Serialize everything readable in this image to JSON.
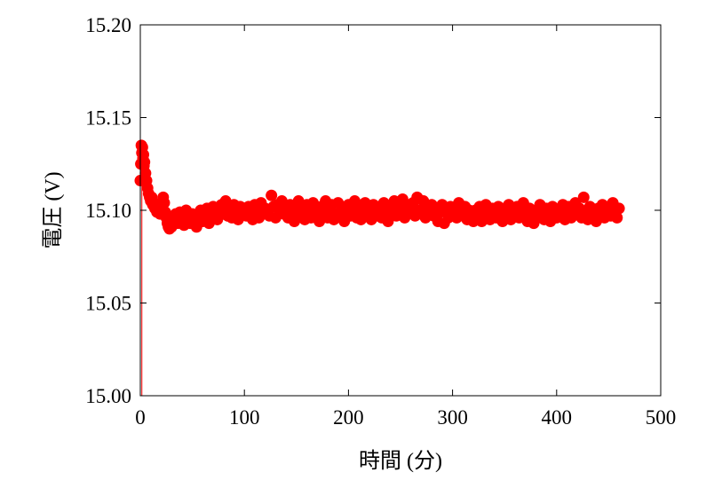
{
  "chart_data": {
    "type": "scatter",
    "title": "",
    "xlabel": "時間 (分)",
    "ylabel": "電圧 (V)",
    "xlim": [
      0,
      500
    ],
    "ylim": [
      15.0,
      15.2
    ],
    "xticks": [
      "0",
      "100",
      "200",
      "300",
      "400",
      "500"
    ],
    "yticks": [
      "15.00",
      "15.05",
      "15.10",
      "15.15",
      "15.20"
    ],
    "grid": false,
    "legend": "none",
    "series_color": "#ff0000",
    "drop_line": {
      "x": [
        1.5,
        1.5
      ],
      "y": [
        15.0,
        15.116
      ]
    },
    "series": [
      {
        "x": [
          0,
          0.5,
          1,
          1.5,
          2,
          2.5,
          3,
          3.5,
          4,
          5,
          6,
          7,
          8,
          9,
          10,
          11,
          12,
          13,
          14,
          15,
          16,
          17,
          18,
          19,
          20,
          21,
          22,
          23,
          24,
          25,
          26,
          27,
          28,
          29,
          30,
          32,
          34,
          36,
          38,
          40,
          42,
          44,
          46,
          48,
          50,
          52,
          54,
          56,
          58,
          60,
          62,
          64,
          66,
          68,
          70,
          72,
          74,
          76,
          78,
          80,
          82,
          84,
          86,
          88,
          90,
          92,
          94,
          96,
          98,
          100,
          102,
          104,
          106,
          108,
          110,
          112,
          114,
          116,
          118,
          120,
          122,
          124,
          126,
          128,
          130,
          132,
          134,
          136,
          138,
          140,
          142,
          144,
          146,
          148,
          150,
          152,
          154,
          156,
          158,
          160,
          162,
          164,
          166,
          168,
          170,
          172,
          174,
          176,
          178,
          180,
          182,
          184,
          186,
          188,
          190,
          192,
          194,
          196,
          198,
          200,
          202,
          204,
          206,
          208,
          210,
          212,
          214,
          216,
          218,
          220,
          222,
          224,
          226,
          228,
          230,
          232,
          234,
          236,
          238,
          240,
          242,
          244,
          246,
          248,
          250,
          252,
          254,
          256,
          258,
          260,
          262,
          264,
          266,
          268,
          270,
          272,
          274,
          276,
          278,
          280,
          282,
          284,
          286,
          288,
          290,
          292,
          294,
          296,
          298,
          300,
          302,
          304,
          306,
          308,
          310,
          312,
          314,
          316,
          318,
          320,
          322,
          324,
          326,
          328,
          330,
          332,
          334,
          336,
          338,
          340,
          342,
          344,
          346,
          348,
          350,
          352,
          354,
          356,
          358,
          360,
          362,
          364,
          366,
          368,
          370,
          372,
          374,
          376,
          378,
          380,
          382,
          384,
          386,
          388,
          390,
          392,
          394,
          396,
          398,
          400,
          402,
          404,
          406,
          408,
          410,
          412,
          414,
          416,
          418,
          420,
          422,
          424,
          426,
          428,
          430,
          432,
          434,
          436,
          438,
          440,
          442,
          444,
          446,
          448,
          450,
          452,
          454,
          456,
          458,
          460
        ],
        "y": [
          15.116,
          15.125,
          15.135,
          15.131,
          15.134,
          15.128,
          15.13,
          15.124,
          15.126,
          15.12,
          15.116,
          15.112,
          15.109,
          15.107,
          15.105,
          15.107,
          15.103,
          15.104,
          15.101,
          15.102,
          15.099,
          15.102,
          15.1,
          15.098,
          15.101,
          15.103,
          15.107,
          15.104,
          15.099,
          15.096,
          15.093,
          15.091,
          15.09,
          15.092,
          15.091,
          15.094,
          15.098,
          15.093,
          15.099,
          15.095,
          15.092,
          15.1,
          15.096,
          15.093,
          15.098,
          15.094,
          15.091,
          15.097,
          15.1,
          15.094,
          15.096,
          15.101,
          15.093,
          15.099,
          15.102,
          15.097,
          15.095,
          15.1,
          15.103,
          15.098,
          15.105,
          15.097,
          15.101,
          15.096,
          15.103,
          15.099,
          15.095,
          15.102,
          15.098,
          15.101,
          15.097,
          15.102,
          15.099,
          15.095,
          15.103,
          15.1,
          15.096,
          15.104,
          15.098,
          15.101,
          15.099,
          15.097,
          15.108,
          15.102,
          15.096,
          15.103,
          15.1,
          15.105,
          15.098,
          15.101,
          15.096,
          15.103,
          15.099,
          15.094,
          15.102,
          15.105,
          15.097,
          15.1,
          15.095,
          15.103,
          15.099,
          15.096,
          15.104,
          15.101,
          15.097,
          15.094,
          15.102,
          15.099,
          15.105,
          15.096,
          15.1,
          15.103,
          15.095,
          15.098,
          15.104,
          15.097,
          15.101,
          15.094,
          15.1,
          15.103,
          15.097,
          15.099,
          15.105,
          15.096,
          15.102,
          15.095,
          15.1,
          15.104,
          15.098,
          15.101,
          15.095,
          15.103,
          15.099,
          15.097,
          15.102,
          15.096,
          15.104,
          15.1,
          15.094,
          15.101,
          15.098,
          15.105,
          15.097,
          15.102,
          15.1,
          15.106,
          15.096,
          15.103,
          15.099,
          15.101,
          15.104,
          15.097,
          15.107,
          15.1,
          15.098,
          15.105,
          15.096,
          15.102,
          15.099,
          15.103,
          15.097,
          15.101,
          15.094,
          15.099,
          15.103,
          15.093,
          15.1,
          15.096,
          15.102,
          15.098,
          15.101,
          15.096,
          15.104,
          15.099,
          15.097,
          15.102,
          15.095,
          15.1,
          15.098,
          15.094,
          15.1,
          15.096,
          15.102,
          15.094,
          15.099,
          15.103,
          15.097,
          15.095,
          15.101,
          15.098,
          15.096,
          15.102,
          15.099,
          15.094,
          15.101,
          15.097,
          15.103,
          15.095,
          15.1,
          15.098,
          15.102,
          15.096,
          15.099,
          15.104,
          15.097,
          15.094,
          15.101,
          15.098,
          15.093,
          15.1,
          15.096,
          15.103,
          15.098,
          15.095,
          15.101,
          15.097,
          15.094,
          15.102,
          15.099,
          15.096,
          15.1,
          15.097,
          15.103,
          15.095,
          15.099,
          15.102,
          15.096,
          15.1,
          15.104,
          15.098,
          15.101,
          15.096,
          15.107,
          15.099,
          15.095,
          15.102,
          15.097,
          15.1,
          15.094,
          15.101,
          15.098,
          15.103,
          15.096,
          15.1,
          15.102,
          15.097,
          15.104,
          15.099,
          15.096,
          15.101
        ]
      }
    ]
  }
}
